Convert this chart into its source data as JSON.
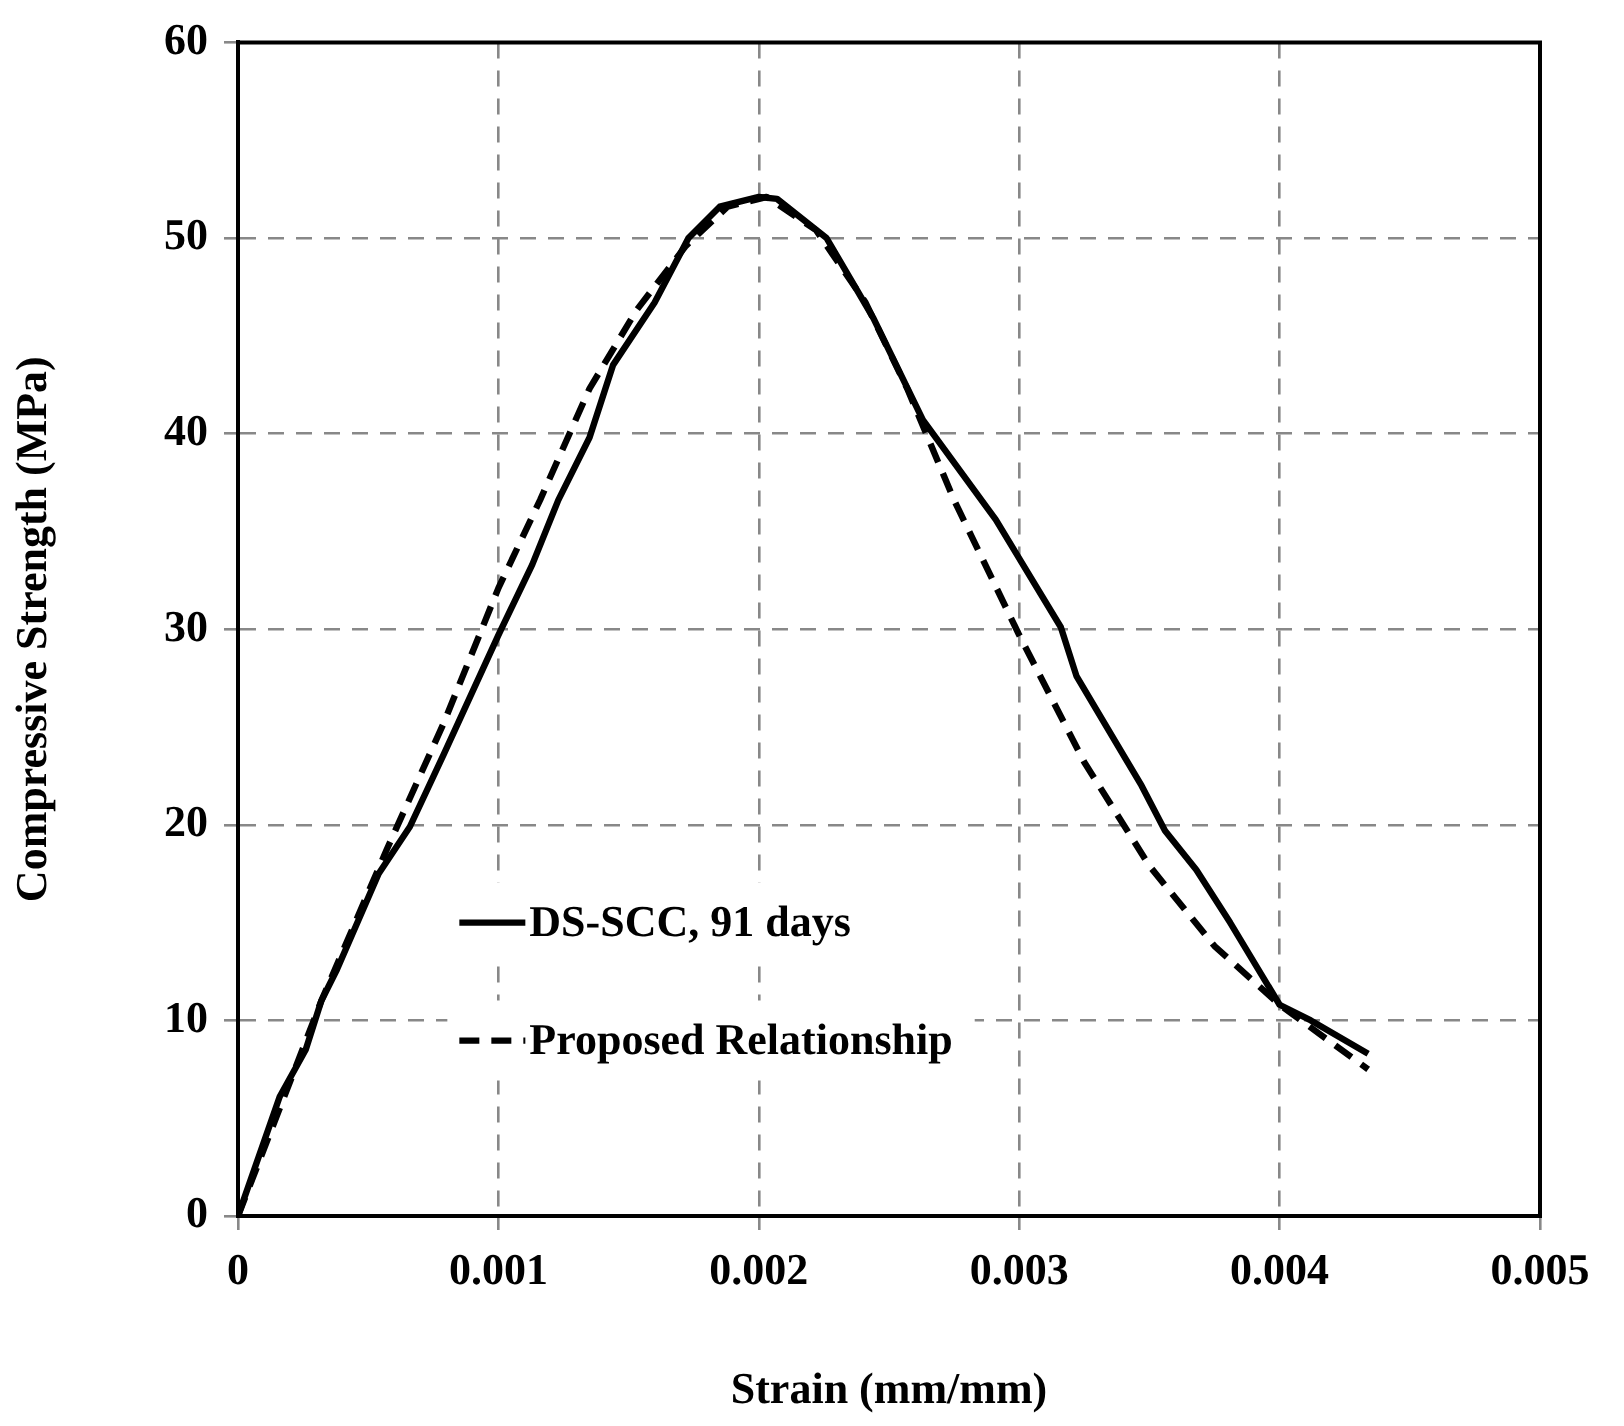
{
  "chart_data": {
    "type": "line",
    "xlabel": "Strain (mm/mm)",
    "ylabel": "Compressive Strength (MPa)",
    "xlim": [
      0,
      0.005
    ],
    "xticks": [
      0,
      0.001,
      0.002,
      0.003,
      0.004,
      0.005
    ],
    "ylim": [
      0,
      60
    ],
    "yticks": [
      0,
      10,
      20,
      30,
      40,
      50,
      60
    ],
    "grid": true,
    "legend": "bottom left",
    "marker": "none",
    "series": [
      {
        "name": "DS-SCC, 91 days",
        "color": "#000000",
        "line_style": "solid",
        "x": [
          0,
          0.00016,
          0.00026,
          0.00032,
          0.00038,
          0.00054,
          0.00066,
          0.00079,
          0.001,
          0.00113,
          0.00123,
          0.00135,
          0.00144,
          0.0016,
          0.00173,
          0.00185,
          0.002,
          0.00207,
          0.00226,
          0.00244,
          0.00263,
          0.00291,
          0.00316,
          0.00322,
          0.00347,
          0.00356,
          0.00368,
          0.00381,
          0.004,
          0.00412,
          0.00434
        ],
        "values": [
          0,
          6.1,
          8.5,
          11,
          12.6,
          17.5,
          19.9,
          23.6,
          29.7,
          33.3,
          36.6,
          39.8,
          43.5,
          46.7,
          50,
          51.6,
          52.1,
          52,
          50,
          45.9,
          40.7,
          35.6,
          30.1,
          27.6,
          22,
          19.7,
          17.7,
          15,
          10.8,
          10,
          8.3
        ]
      },
      {
        "name": "Proposed Relationship",
        "color": "#000000",
        "line_style": "dashed",
        "x": [
          0,
          0.00032,
          0.00057,
          0.00079,
          0.001,
          0.00116,
          0.00135,
          0.00153,
          0.00172,
          0.00188,
          0.00203,
          0.00222,
          0.00241,
          0.00257,
          0.00275,
          0.003,
          0.00325,
          0.0035,
          0.00375,
          0.004,
          0.00434
        ],
        "values": [
          0,
          11,
          18.7,
          25.2,
          32.1,
          36.6,
          42.3,
          46.3,
          49.6,
          51.6,
          52.1,
          50.4,
          46.7,
          42.3,
          36.6,
          29.7,
          23.2,
          17.9,
          13.8,
          10.8,
          7.5
        ]
      }
    ]
  }
}
